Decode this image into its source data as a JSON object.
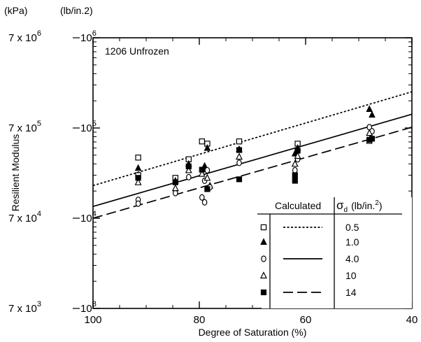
{
  "chart_data": {
    "type": "scatter",
    "title": "",
    "annotation": "1206 Unfrozen",
    "xlabel": "Degree of Saturation (%)",
    "ylabel": "Resilient Modulus",
    "x_reversed": true,
    "xlim": [
      100,
      40
    ],
    "x_ticks": [
      "100",
      "80",
      "60",
      "40"
    ],
    "y_scale": "log",
    "ylim": [
      1000,
      1000000
    ],
    "y_unit_primary": "(lb/in.2)",
    "y_unit_secondary": "(kPa)",
    "y_ticks_primary": [
      {
        "base": "10",
        "exp": "6"
      },
      {
        "base": "10",
        "exp": "5"
      },
      {
        "base": "10",
        "exp": "4"
      },
      {
        "base": "10",
        "exp": "3"
      }
    ],
    "y_ticks_secondary": [
      {
        "base": "7 x 10",
        "exp": "6"
      },
      {
        "base": "7 x 10",
        "exp": "5"
      },
      {
        "base": "7 x 10",
        "exp": "4"
      },
      {
        "base": "7 x 10",
        "exp": "3"
      }
    ],
    "legend": {
      "header_calculated": "Calculated",
      "header_sigma": "σ",
      "header_sigma_sub": "d",
      "header_unit": "(lb/in.",
      "header_unit_exp": "2",
      "header_unit_close": ")",
      "entries": [
        {
          "marker": "open-square",
          "line": "dotted",
          "value": "0.5"
        },
        {
          "marker": "filled-triangle",
          "line": "none",
          "value": "1.0"
        },
        {
          "marker": "open-circle",
          "line": "solid",
          "value": "4.0"
        },
        {
          "marker": "open-triangle",
          "line": "none",
          "value": "10"
        },
        {
          "marker": "filled-square",
          "line": "dashed",
          "value": "14"
        }
      ]
    },
    "curves": [
      {
        "sigma": "0.5",
        "style": "dotted",
        "x": [
          100,
          40
        ],
        "y": [
          23000,
          252000
        ]
      },
      {
        "sigma": "4.0",
        "style": "solid",
        "x": [
          100,
          40
        ],
        "y": [
          13500,
          142000
        ]
      },
      {
        "sigma": "14",
        "style": "dashed",
        "x": [
          100,
          40
        ],
        "y": [
          10000,
          102000
        ]
      }
    ],
    "series": [
      {
        "sigma": "0.5",
        "marker": "open-square",
        "points": [
          [
            91.5,
            47000
          ],
          [
            91.5,
            30000
          ],
          [
            84.5,
            28000
          ],
          [
            82.0,
            45000
          ],
          [
            79.5,
            71000
          ],
          [
            78.5,
            67000
          ],
          [
            72.5,
            71000
          ],
          [
            61.5,
            67000
          ],
          [
            48.0,
            72000
          ]
        ]
      },
      {
        "sigma": "1.0",
        "marker": "filled-triangle",
        "points": [
          [
            91.5,
            36000
          ],
          [
            84.5,
            26000
          ],
          [
            82.0,
            40000
          ],
          [
            79.0,
            38000
          ],
          [
            78.5,
            60000
          ],
          [
            78.0,
            23000
          ],
          [
            72.5,
            58000
          ],
          [
            62.0,
            52000
          ],
          [
            61.5,
            60000
          ],
          [
            48.0,
            162000
          ],
          [
            47.5,
            140000
          ]
        ]
      },
      {
        "sigma": "4.0",
        "marker": "open-circle",
        "points": [
          [
            91.5,
            16000
          ],
          [
            91.5,
            14500
          ],
          [
            84.5,
            19000
          ],
          [
            82.0,
            28500
          ],
          [
            79.5,
            17000
          ],
          [
            79.0,
            15000
          ],
          [
            79.0,
            26000
          ],
          [
            78.5,
            34000
          ],
          [
            78.0,
            22000
          ],
          [
            72.5,
            41000
          ],
          [
            62.0,
            34000
          ],
          [
            61.5,
            45000
          ],
          [
            48.0,
            102000
          ],
          [
            47.5,
            92000
          ]
        ]
      },
      {
        "sigma": "10",
        "marker": "open-triangle",
        "points": [
          [
            91.5,
            25000
          ],
          [
            84.5,
            21500
          ],
          [
            82.0,
            34000
          ],
          [
            79.5,
            31000
          ],
          [
            78.5,
            28000
          ],
          [
            72.5,
            48000
          ],
          [
            62.0,
            40000
          ],
          [
            61.5,
            49000
          ],
          [
            48.0,
            88000
          ]
        ]
      },
      {
        "sigma": "14",
        "marker": "filled-square",
        "points": [
          [
            91.5,
            28000
          ],
          [
            84.5,
            25000
          ],
          [
            82.0,
            37500
          ],
          [
            79.5,
            34500
          ],
          [
            78.5,
            21000
          ],
          [
            72.5,
            27000
          ],
          [
            72.5,
            57000
          ],
          [
            62.0,
            26000
          ],
          [
            62.0,
            30000
          ],
          [
            61.5,
            56000
          ],
          [
            48.0,
            74000
          ],
          [
            47.5,
            76000
          ]
        ]
      }
    ]
  }
}
